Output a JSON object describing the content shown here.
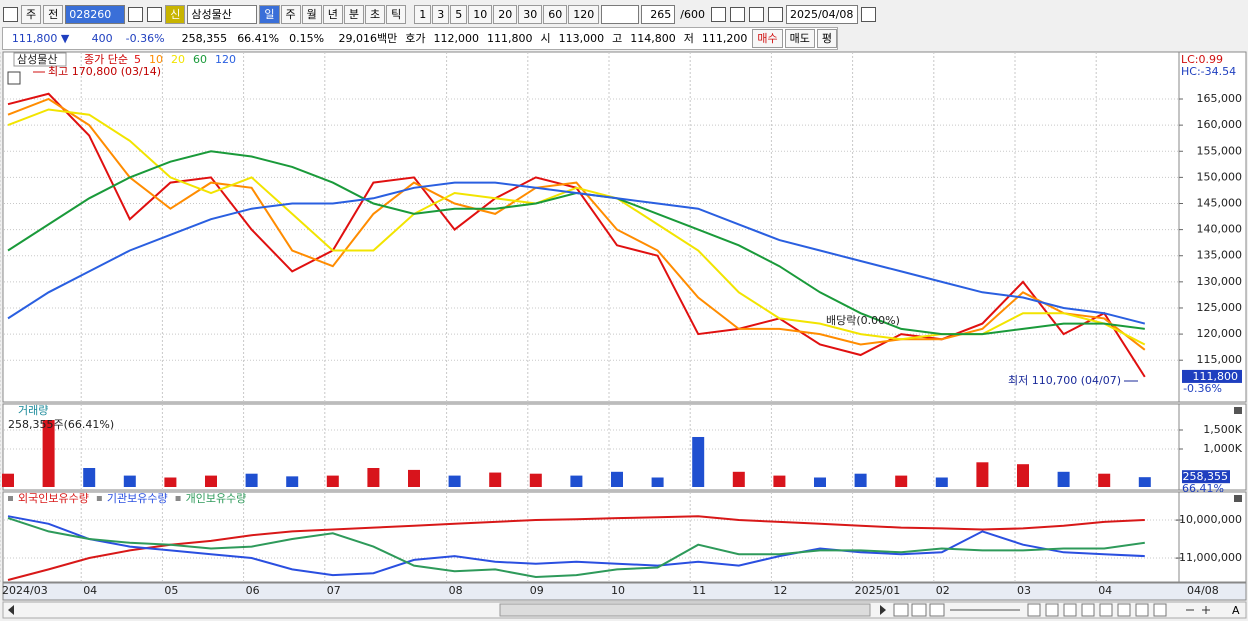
{
  "toolbar": {
    "market": "주",
    "prev": "전",
    "code": "028260",
    "credit": "신",
    "name": "삼성물산",
    "periods": [
      "일",
      "주",
      "월",
      "년",
      "분",
      "초",
      "틱"
    ],
    "intervals": [
      "1",
      "3",
      "5",
      "10",
      "20",
      "30",
      "60",
      "120"
    ],
    "count": "265",
    "max": "/600",
    "date": "2025/04/08",
    "zoom_label": "A"
  },
  "quote": {
    "price": "111,800 ▼",
    "change": "400",
    "rate": "-0.36%",
    "volume": "258,355",
    "volume_ratio": "66.41%",
    "turnover": "0.15%",
    "amount": "29,016백만",
    "ask_label": "호가",
    "ask": "112,000",
    "bid": "111,800",
    "open_label": "시",
    "open": "113,000",
    "high_label": "고",
    "high": "114,800",
    "low_label": "저",
    "low": "111,200",
    "buy": "매수",
    "sell": "매도",
    "avg": "평"
  },
  "chart_data": [
    {
      "type": "line",
      "title": "삼성물산",
      "legend_title": "종가 단순",
      "series": [
        {
          "name": "5",
          "color": "#e01010",
          "values": [
            164000,
            166000,
            158000,
            142000,
            149000,
            150000,
            140000,
            132000,
            136000,
            149000,
            150000,
            140000,
            146000,
            150000,
            148000,
            137000,
            135000,
            120000,
            121000,
            123000,
            118000,
            116000,
            120000,
            119000,
            122000,
            130000,
            120000,
            124000,
            111800
          ]
        },
        {
          "name": "10",
          "color": "#ff8c00",
          "values": [
            162000,
            165000,
            160000,
            150000,
            144000,
            149000,
            148000,
            136000,
            133000,
            143000,
            149000,
            145000,
            143000,
            148000,
            149000,
            140000,
            136000,
            127000,
            121000,
            121000,
            120000,
            118000,
            119000,
            119000,
            121000,
            128000,
            124000,
            123000,
            117000
          ]
        },
        {
          "name": "20",
          "color": "#f2e400",
          "values": [
            160000,
            163000,
            162000,
            157000,
            150000,
            147000,
            150000,
            143000,
            136000,
            136000,
            143000,
            147000,
            146000,
            145000,
            148000,
            146000,
            141000,
            136000,
            128000,
            123000,
            122000,
            120000,
            119000,
            120000,
            120000,
            124000,
            124000,
            122000,
            118000
          ]
        },
        {
          "name": "60",
          "color": "#1a9a3a",
          "values": [
            136000,
            141000,
            146000,
            150000,
            153000,
            155000,
            154000,
            152000,
            149000,
            145000,
            143000,
            144000,
            144000,
            145000,
            147000,
            146000,
            143000,
            140000,
            137000,
            133000,
            128000,
            124000,
            121000,
            120000,
            120000,
            121000,
            122000,
            122000,
            121000
          ]
        },
        {
          "name": "120",
          "color": "#2a5fe0",
          "values": [
            123000,
            128000,
            132000,
            136000,
            139000,
            142000,
            144000,
            145000,
            145000,
            146000,
            148000,
            149000,
            149000,
            148000,
            147000,
            146000,
            145000,
            144000,
            141000,
            138000,
            136000,
            134000,
            132000,
            130000,
            128000,
            127000,
            125000,
            124000,
            122000
          ]
        }
      ],
      "ylim": [
        107000,
        174000
      ],
      "yticks": [
        {
          "value": 115000,
          "label": "115,000"
        },
        {
          "value": 120000,
          "label": "120,000"
        },
        {
          "value": 125000,
          "label": "125,000"
        },
        {
          "value": 130000,
          "label": "130,000"
        },
        {
          "value": 135000,
          "label": "135,000"
        },
        {
          "value": 140000,
          "label": "140,000"
        },
        {
          "value": 145000,
          "label": "145,000"
        },
        {
          "value": 150000,
          "label": "150,000"
        },
        {
          "value": 155000,
          "label": "155,000"
        },
        {
          "value": 160000,
          "label": "160,000"
        },
        {
          "value": 165000,
          "label": "165,000"
        }
      ],
      "grid": true,
      "annotations": {
        "high": "최고 170,800 (03/14)",
        "low": "최저 110,700 (04/07)",
        "dividend": "배당락(0.00%)",
        "lc": "LC:0.99",
        "hc": "HC:-34.54"
      },
      "last_label": "111,800",
      "change_label": "-0.36%"
    },
    {
      "type": "bar",
      "title": "거래량",
      "subtitle": "258,355주(66.41%)",
      "values": [
        350000,
        1763000,
        500000,
        300000,
        250000,
        300000,
        350000,
        280000,
        300000,
        500000,
        450000,
        300000,
        380000,
        350000,
        300000,
        400000,
        250000,
        1316000,
        400000,
        300000,
        250000,
        350000,
        300000,
        250000,
        650000,
        600000,
        400000,
        350000,
        258355
      ],
      "up_color": "#d8141c",
      "down_color": "#1f4fd0",
      "ylim": [
        0,
        2184000
      ],
      "yticks": [
        {
          "value": 1000000,
          "label": "1,000K"
        },
        {
          "value": 1500000,
          "label": "1,500K"
        }
      ],
      "last_label": "258,355",
      "ratio_label": "66.41%"
    },
    {
      "type": "line",
      "series": [
        {
          "name": "외국인보유수량",
          "color": "#d81818",
          "values": [
            -11580000,
            -11300000,
            -11000000,
            -10800000,
            -10650000,
            -10550000,
            -10400000,
            -10300000,
            -10250000,
            -10200000,
            -10150000,
            -10100000,
            -10050000,
            -10000000,
            -9980000,
            -9950000,
            -9930000,
            -9900000,
            -10000000,
            -10050000,
            -10100000,
            -10150000,
            -10200000,
            -10220000,
            -10250000,
            -10220000,
            -10150000,
            -10050000,
            -10000000
          ]
        },
        {
          "name": "기관보유수량",
          "color": "#2a4fe0",
          "values": [
            -9900000,
            -10100000,
            -10500000,
            -10700000,
            -10800000,
            -10900000,
            -11000000,
            -11300000,
            -11450000,
            -11400000,
            -11050000,
            -10950000,
            -11100000,
            -11150000,
            -11100000,
            -11150000,
            -11200000,
            -11100000,
            -11200000,
            -10950000,
            -10750000,
            -10850000,
            -10900000,
            -10850000,
            -10300000,
            -10650000,
            -10850000,
            -10900000,
            -10950000
          ]
        },
        {
          "name": "개인보유수량",
          "color": "#2e9a5a",
          "values": [
            -9950000,
            -10300000,
            -10500000,
            -10600000,
            -10650000,
            -10750000,
            -10700000,
            -10500000,
            -10350000,
            -10700000,
            -11200000,
            -11350000,
            -11300000,
            -11500000,
            -11450000,
            -11300000,
            -11250000,
            -10650000,
            -10900000,
            -10900000,
            -10800000,
            -10800000,
            -10850000,
            -10750000,
            -10800000,
            -10800000,
            -10750000,
            -10750000,
            -10600000
          ]
        }
      ],
      "ylim": [
        -11632000,
        -9263000
      ],
      "yticks": [
        {
          "value": -11000000,
          "label": "-11,000,000"
        },
        {
          "value": -10000000,
          "label": "-10,000,000"
        }
      ],
      "categories": [
        "2024/03",
        null,
        "04",
        null,
        "05",
        null,
        "06",
        null,
        "07",
        null,
        null,
        "08",
        null,
        "09",
        null,
        "10",
        null,
        "11",
        null,
        "12",
        null,
        "2025/01",
        null,
        "02",
        null,
        "03",
        null,
        "04",
        null
      ],
      "x_end_label": "04/08"
    }
  ]
}
